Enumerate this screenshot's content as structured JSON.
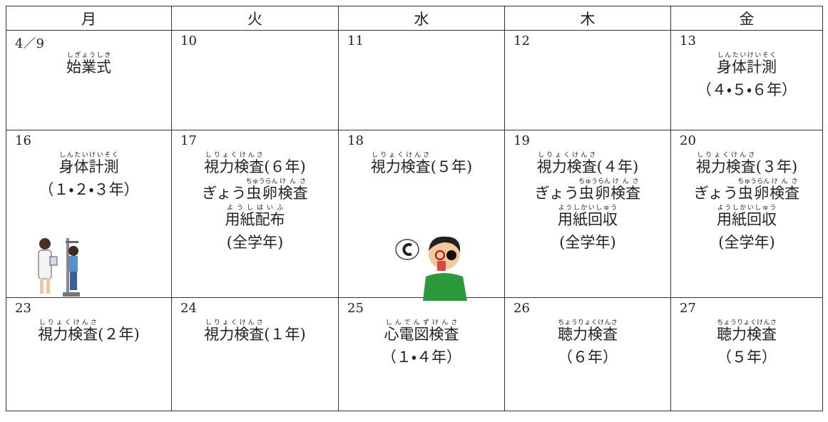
{
  "header": [
    "月",
    "火",
    "水",
    "木",
    "金"
  ],
  "rows": [
    [
      {
        "date": "4／9",
        "lines": [
          [
            {
              "text": "始業式",
              "ruby": "しぎょうしき"
            }
          ]
        ]
      },
      {
        "date": "10",
        "lines": []
      },
      {
        "date": "11",
        "lines": []
      },
      {
        "date": "12",
        "lines": []
      },
      {
        "date": "13",
        "lines": [
          [
            {
              "text": "身体計測",
              "ruby": "しんたいけいそく"
            }
          ],
          [
            {
              "text": "（４・５・６年）"
            }
          ]
        ]
      }
    ],
    [
      {
        "date": "16",
        "lines": [
          [
            {
              "text": "身体計測",
              "ruby": "しんたいけいそく"
            }
          ],
          [
            {
              "text": "（１・２・３年）"
            }
          ]
        ]
      },
      {
        "date": "17",
        "lines": [
          [
            {
              "text": "視力検査",
              "ruby": "しりょくけんさ"
            },
            {
              "text": "(６年)"
            }
          ],
          [
            {
              "text": "ぎょう"
            },
            {
              "text": "虫卵",
              "ruby": "ちゅうらん"
            },
            {
              "text": "検査",
              "ruby": "けんさ"
            }
          ],
          [
            {
              "text": "用紙配布",
              "ruby": "ようしはいふ"
            }
          ],
          [
            {
              "text": "(全学年)"
            }
          ]
        ]
      },
      {
        "date": "18",
        "lines": [
          [
            {
              "text": "視力検査",
              "ruby": "しりょくけんさ"
            },
            {
              "text": "(５年)"
            }
          ]
        ]
      },
      {
        "date": "19",
        "lines": [
          [
            {
              "text": "視力検査",
              "ruby": "しりょくけんさ"
            },
            {
              "text": "(４年)"
            }
          ],
          [
            {
              "text": "ぎょう"
            },
            {
              "text": "虫卵",
              "ruby": "ちゅうらん"
            },
            {
              "text": "検査",
              "ruby": "けんさ"
            }
          ],
          [
            {
              "text": "用紙回収",
              "ruby": "ようしかいしゅう"
            }
          ],
          [
            {
              "text": "(全学年)"
            }
          ]
        ]
      },
      {
        "date": "20",
        "lines": [
          [
            {
              "text": "視力検査",
              "ruby": "しりょくけんさ"
            },
            {
              "text": "(３年)"
            }
          ],
          [
            {
              "text": "ぎょう"
            },
            {
              "text": "虫卵",
              "ruby": "ちゅうらん"
            },
            {
              "text": "検査",
              "ruby": "けんさ"
            }
          ],
          [
            {
              "text": "用紙回収",
              "ruby": "ようしかいしゅう"
            }
          ],
          [
            {
              "text": "(全学年)"
            }
          ]
        ]
      }
    ],
    [
      {
        "date": "23",
        "lines": [
          [
            {
              "text": "視力検査",
              "ruby": "しりょくけんさ"
            },
            {
              "text": "(２年)"
            }
          ]
        ]
      },
      {
        "date": "24",
        "lines": [
          [
            {
              "text": "視力検査",
              "ruby": "しりょくけんさ"
            },
            {
              "text": "(１年)"
            }
          ]
        ]
      },
      {
        "date": "25",
        "lines": [
          [
            {
              "text": "心電図検査",
              "ruby": "しんでんずけんさ"
            }
          ],
          [
            {
              "text": "（１・４年）"
            }
          ]
        ]
      },
      {
        "date": "26",
        "lines": [
          [
            {
              "text": "聴力検査",
              "ruby": "ちょうりょくけんさ"
            }
          ],
          [
            {
              "text": "（６年）"
            }
          ]
        ]
      },
      {
        "date": "27",
        "lines": [
          [
            {
              "text": "聴力検査",
              "ruby": "ちょうりょくけんさ"
            }
          ],
          [
            {
              "text": "（５年）"
            }
          ]
        ]
      }
    ]
  ]
}
